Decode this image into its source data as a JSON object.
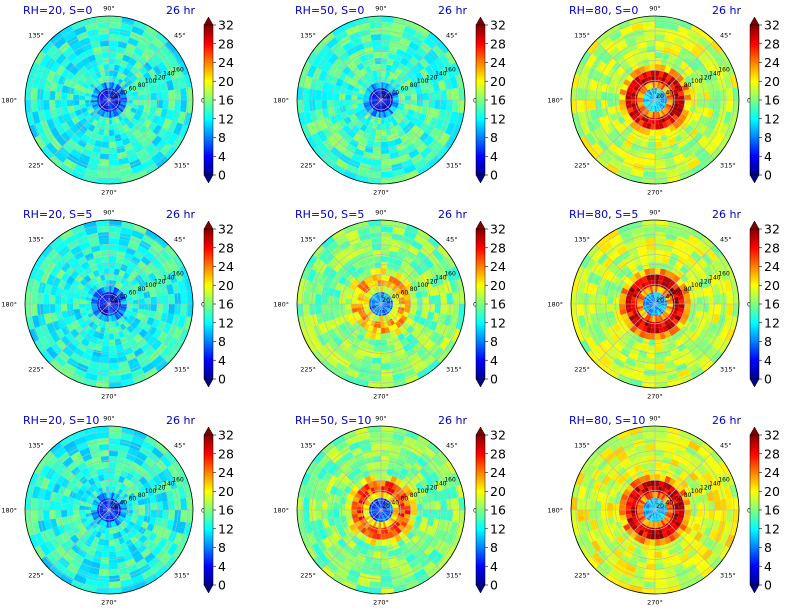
{
  "figure": {
    "colorbar_ticks": [
      "0",
      "4",
      "8",
      "12",
      "16",
      "20",
      "24",
      "28",
      "32"
    ],
    "angle_labels": [
      "0°",
      "45°",
      "90°",
      "135°",
      "180°",
      "225°",
      "270°",
      "315°"
    ],
    "radial_labels": [
      "20",
      "40",
      "60",
      "80",
      "100",
      "120",
      "140",
      "160"
    ],
    "title_color": "#0000cc"
  },
  "chart_data": [
    {
      "type": "heatmap",
      "title": "RH=20, S=0",
      "time_label": "26 hr",
      "angular_ticks_deg": [
        0,
        45,
        90,
        135,
        180,
        225,
        270,
        315
      ],
      "radial_ticks": [
        20,
        40,
        60,
        80,
        100,
        120,
        140,
        160
      ],
      "colorbar": [
        0,
        4,
        8,
        12,
        16,
        20,
        24,
        28,
        32
      ],
      "colormap": "jet",
      "grid": true,
      "value_summary": {
        "background": 13,
        "core": 4,
        "ring": null
      }
    },
    {
      "type": "heatmap",
      "title": "RH=50, S=0",
      "time_label": "26 hr",
      "angular_ticks_deg": [
        0,
        45,
        90,
        135,
        180,
        225,
        270,
        315
      ],
      "radial_ticks": [
        20,
        40,
        60,
        80,
        100,
        120,
        140,
        160
      ],
      "colorbar": [
        0,
        4,
        8,
        12,
        16,
        20,
        24,
        28,
        32
      ],
      "colormap": "jet",
      "grid": true,
      "value_summary": {
        "background": 14,
        "core": 3,
        "ring": null
      }
    },
    {
      "type": "heatmap",
      "title": "RH=80, S=0",
      "time_label": "26 hr",
      "angular_ticks_deg": [
        0,
        45,
        90,
        135,
        180,
        225,
        270,
        315
      ],
      "radial_ticks": [
        20,
        40,
        60,
        80,
        100,
        120,
        140,
        160
      ],
      "colorbar": [
        0,
        4,
        8,
        12,
        16,
        20,
        24,
        28,
        32
      ],
      "colormap": "jet",
      "grid": true,
      "value_summary": {
        "background": 18,
        "core": 10,
        "ring": 32
      }
    },
    {
      "type": "heatmap",
      "title": "RH=20, S=5",
      "time_label": "26 hr",
      "angular_ticks_deg": [
        0,
        45,
        90,
        135,
        180,
        225,
        270,
        315
      ],
      "radial_ticks": [
        20,
        40,
        60,
        80,
        100,
        120,
        140,
        160
      ],
      "colorbar": [
        0,
        4,
        8,
        12,
        16,
        20,
        24,
        28,
        32
      ],
      "colormap": "jet",
      "grid": true,
      "value_summary": {
        "background": 13,
        "core": 4,
        "ring": null
      }
    },
    {
      "type": "heatmap",
      "title": "RH=50, S=5",
      "time_label": "26 hr",
      "angular_ticks_deg": [
        0,
        45,
        90,
        135,
        180,
        225,
        270,
        315
      ],
      "radial_ticks": [
        20,
        40,
        60,
        80,
        100,
        120,
        140,
        160
      ],
      "colorbar": [
        0,
        4,
        8,
        12,
        16,
        20,
        24,
        28,
        32
      ],
      "colormap": "jet",
      "grid": true,
      "value_summary": {
        "background": 16,
        "core": 8,
        "ring": 24
      }
    },
    {
      "type": "heatmap",
      "title": "RH=80, S=5",
      "time_label": "26 hr",
      "angular_ticks_deg": [
        0,
        45,
        90,
        135,
        180,
        225,
        270,
        315
      ],
      "radial_ticks": [
        20,
        40,
        60,
        80,
        100,
        120,
        140,
        160
      ],
      "colorbar": [
        0,
        4,
        8,
        12,
        16,
        20,
        24,
        28,
        32
      ],
      "colormap": "jet",
      "grid": true,
      "value_summary": {
        "background": 18,
        "core": 9,
        "ring": 32
      }
    },
    {
      "type": "heatmap",
      "title": "RH=20, S=10",
      "time_label": "26 hr",
      "angular_ticks_deg": [
        0,
        45,
        90,
        135,
        180,
        225,
        270,
        315
      ],
      "radial_ticks": [
        20,
        40,
        60,
        80,
        100,
        120,
        140,
        160
      ],
      "colorbar": [
        0,
        4,
        8,
        12,
        16,
        20,
        24,
        28,
        32
      ],
      "colormap": "jet",
      "grid": true,
      "value_summary": {
        "background": 13,
        "core": 5,
        "ring": null
      }
    },
    {
      "type": "heatmap",
      "title": "RH=50, S=10",
      "time_label": "26 hr",
      "angular_ticks_deg": [
        0,
        45,
        90,
        135,
        180,
        225,
        270,
        315
      ],
      "radial_ticks": [
        20,
        40,
        60,
        80,
        100,
        120,
        140,
        160
      ],
      "colorbar": [
        0,
        4,
        8,
        12,
        16,
        20,
        24,
        28,
        32
      ],
      "colormap": "jet",
      "grid": true,
      "value_summary": {
        "background": 16,
        "core": 6,
        "ring": 28
      }
    },
    {
      "type": "heatmap",
      "title": "RH=80, S=10",
      "time_label": "26 hr",
      "angular_ticks_deg": [
        0,
        45,
        90,
        135,
        180,
        225,
        270,
        315
      ],
      "radial_ticks": [
        20,
        40,
        60,
        80,
        100,
        120,
        140,
        160
      ],
      "colorbar": [
        0,
        4,
        8,
        12,
        16,
        20,
        24,
        28,
        32
      ],
      "colormap": "jet",
      "grid": true,
      "value_summary": {
        "background": 19,
        "core": 10,
        "ring": 32
      }
    }
  ]
}
